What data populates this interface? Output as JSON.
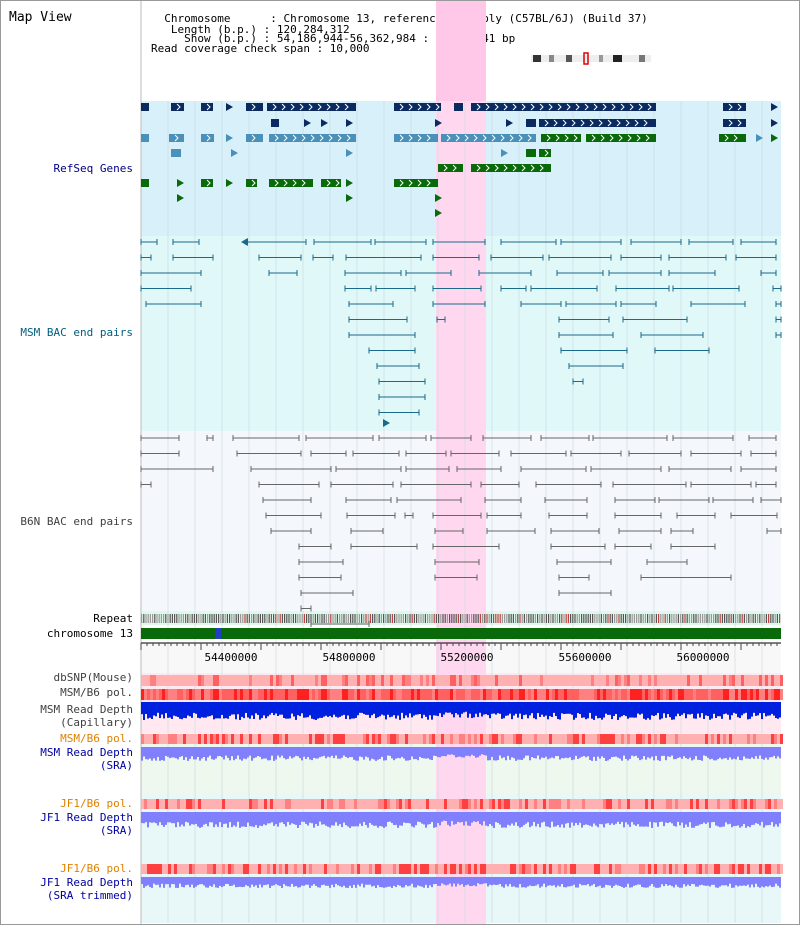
{
  "title": "Map View",
  "header": {
    "lines": [
      "  Chromosome      : Chromosome 13, reference assembly (C57BL/6J) (Build 37)",
      "   Length (b.p.) : 120,284,312",
      "     Show (b.p.) : 54,186,944-56,362,984 : 2,176,041 bp",
      "Read coverage check span : 10,000"
    ]
  },
  "tracks": {
    "refseq": "RefSeq Genes",
    "msm_bac": "MSM BAC end pairs",
    "b6n_bac": "B6N BAC end pairs",
    "repeat": "Repeat",
    "chromosome": "chromosome 13",
    "dbsnp": "dbSNP(Mouse)",
    "msm_b6_pol_1": "MSM/B6 pol.",
    "msm_depth_cap_1": "MSM Read Depth",
    "msm_depth_cap_2": "(Capillary)",
    "msm_b6_pol_2": "MSM/B6 pol.",
    "msm_depth_sra_1": "MSM Read Depth",
    "msm_depth_sra_2": "(SRA)",
    "jf1_pol_1": "JF1/B6 pol.",
    "jf1_depth_sra_1": "JF1 Read Depth",
    "jf1_depth_sra_2": "(SRA)",
    "jf1_pol_2": "JF1/B6 pol.",
    "jf1_depth_trim_1": "JF1 Read Depth",
    "jf1_depth_trim_2": "(SRA trimmed)"
  },
  "axis": {
    "ticks": [
      "54400000",
      "54800000",
      "55200000",
      "55600000",
      "56000000"
    ]
  },
  "colors": {
    "refseq_label": "#000080",
    "msm_label": "#006080",
    "b6n_label": "#404040",
    "orange_label": "#e08000",
    "blue_label": "#0000a0",
    "highlight": "#ffd8f0",
    "gene_dark": "#0a2a60",
    "gene_mid": "#4a90b8",
    "gene_green": "#0a6a0a",
    "bac_msm": "#1a6a8a",
    "bac_b6n": "#666666",
    "chrom_bar": "#0a6a0a",
    "snp_pink": "#ffb0b0",
    "snp_red": "#ff4040",
    "depth_blue": "#0020e0",
    "depth_light": "#8080ff"
  }
}
